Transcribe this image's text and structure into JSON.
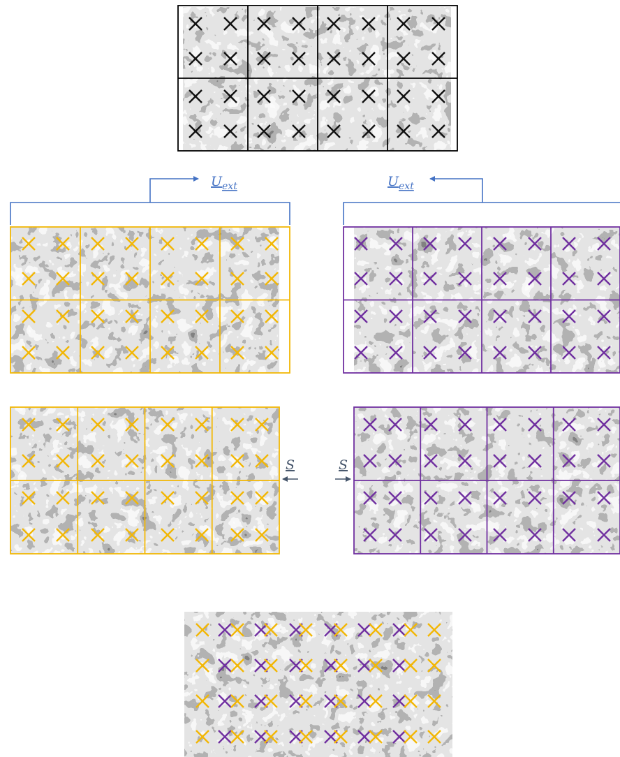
{
  "colors": {
    "original_marker": "#111111",
    "left_marker": "#f2b705",
    "right_marker": "#7030a0",
    "u_arrow": "#4472c4",
    "s_arrow": "#44546a",
    "grid_original": "#000000",
    "grid_left": "#f2b705",
    "grid_right": "#7030a0"
  },
  "labels": {
    "u_ext_left": "U_ext",
    "u_ext_right": "U_ext",
    "s_left": "S",
    "s_right": "S"
  },
  "panels": {
    "original": {
      "cells_cols": 4,
      "cells_rows": 2,
      "markers_per_cell": [
        2,
        2
      ]
    },
    "left_shifted": {
      "cells_cols": 4,
      "cells_rows": 2,
      "markers_per_cell": [
        2,
        2
      ]
    },
    "right_shifted": {
      "cells_cols": 4,
      "cells_rows": 2,
      "markers_per_cell": [
        2,
        2
      ]
    },
    "left_corrected": {
      "cells_cols": 4,
      "cells_rows": 2,
      "markers_per_cell": [
        2,
        2
      ]
    },
    "right_corrected": {
      "cells_cols": 4,
      "cells_rows": 2,
      "markers_per_cell": [
        2,
        2
      ]
    },
    "combined": {
      "rows": 4,
      "pairs_per_row": 8
    }
  }
}
